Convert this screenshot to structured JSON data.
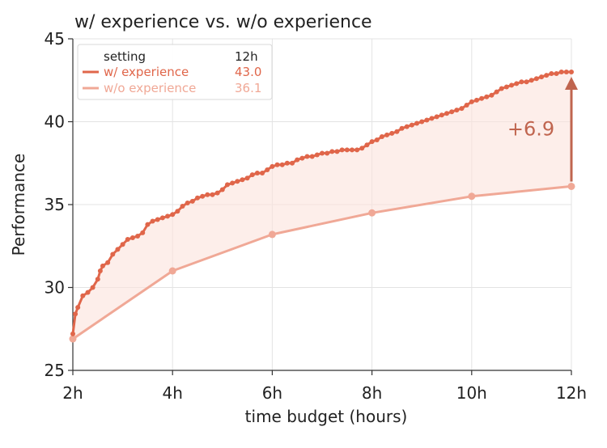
{
  "chart_data": {
    "type": "line",
    "title": "w/ experience vs. w/o experience",
    "xlabel": "time budget (hours)",
    "ylabel": "Performance",
    "xlim": [
      2,
      12
    ],
    "ylim": [
      25,
      45
    ],
    "xticks": [
      2,
      4,
      6,
      8,
      10,
      12
    ],
    "xtick_labels": [
      "2h",
      "4h",
      "6h",
      "8h",
      "10h",
      "12h"
    ],
    "yticks": [
      25,
      30,
      35,
      40,
      45
    ],
    "ytick_labels": [
      "25",
      "30",
      "35",
      "40",
      "45"
    ],
    "grid": true,
    "legend": {
      "position": "top-left",
      "header_setting": "setting",
      "header_value": "12h"
    },
    "series": [
      {
        "name": "w/ experience",
        "color": "#e0664a",
        "final_label": "43.0",
        "x": [
          2.0,
          2.05,
          2.1,
          2.2,
          2.3,
          2.4,
          2.5,
          2.55,
          2.6,
          2.7,
          2.8,
          2.9,
          3.0,
          3.1,
          3.2,
          3.3,
          3.4,
          3.5,
          3.6,
          3.7,
          3.8,
          3.9,
          4.0,
          4.1,
          4.2,
          4.3,
          4.4,
          4.5,
          4.6,
          4.7,
          4.8,
          4.9,
          5.0,
          5.1,
          5.2,
          5.3,
          5.4,
          5.5,
          5.6,
          5.7,
          5.8,
          5.9,
          6.0,
          6.1,
          6.2,
          6.3,
          6.4,
          6.5,
          6.6,
          6.7,
          6.8,
          6.9,
          7.0,
          7.1,
          7.2,
          7.3,
          7.4,
          7.5,
          7.6,
          7.7,
          7.8,
          7.9,
          8.0,
          8.1,
          8.2,
          8.3,
          8.4,
          8.5,
          8.6,
          8.7,
          8.8,
          8.9,
          9.0,
          9.1,
          9.2,
          9.3,
          9.4,
          9.5,
          9.6,
          9.7,
          9.8,
          9.9,
          10.0,
          10.1,
          10.2,
          10.3,
          10.4,
          10.5,
          10.6,
          10.7,
          10.8,
          10.9,
          11.0,
          11.1,
          11.2,
          11.3,
          11.4,
          11.5,
          11.6,
          11.7,
          11.8,
          11.9,
          12.0
        ],
        "values": [
          27.2,
          28.4,
          28.8,
          29.5,
          29.7,
          30.0,
          30.5,
          31.0,
          31.3,
          31.5,
          32.0,
          32.3,
          32.6,
          32.9,
          33.0,
          33.1,
          33.3,
          33.8,
          34.0,
          34.1,
          34.2,
          34.3,
          34.4,
          34.6,
          34.9,
          35.1,
          35.2,
          35.4,
          35.5,
          35.6,
          35.6,
          35.7,
          35.9,
          36.2,
          36.3,
          36.4,
          36.5,
          36.6,
          36.8,
          36.9,
          36.9,
          37.1,
          37.3,
          37.4,
          37.4,
          37.5,
          37.5,
          37.7,
          37.8,
          37.9,
          37.9,
          38.0,
          38.1,
          38.1,
          38.2,
          38.2,
          38.3,
          38.3,
          38.3,
          38.3,
          38.4,
          38.6,
          38.8,
          38.9,
          39.1,
          39.2,
          39.3,
          39.4,
          39.6,
          39.7,
          39.8,
          39.9,
          40.0,
          40.1,
          40.2,
          40.3,
          40.4,
          40.5,
          40.6,
          40.7,
          40.8,
          41.0,
          41.2,
          41.3,
          41.4,
          41.5,
          41.6,
          41.8,
          42.0,
          42.1,
          42.2,
          42.3,
          42.4,
          42.4,
          42.5,
          42.6,
          42.7,
          42.8,
          42.9,
          42.9,
          43.0,
          43.0,
          43.0
        ]
      },
      {
        "name": "w/o experience",
        "color": "#f0a896",
        "final_label": "36.1",
        "x": [
          2,
          4,
          6,
          8,
          10,
          12
        ],
        "values": [
          26.9,
          31.0,
          33.2,
          34.5,
          35.5,
          36.1
        ]
      }
    ],
    "annotation": {
      "text": "+6.9",
      "x": 12,
      "from": 36.1,
      "to": 43.0,
      "color": "#c0654f"
    }
  }
}
